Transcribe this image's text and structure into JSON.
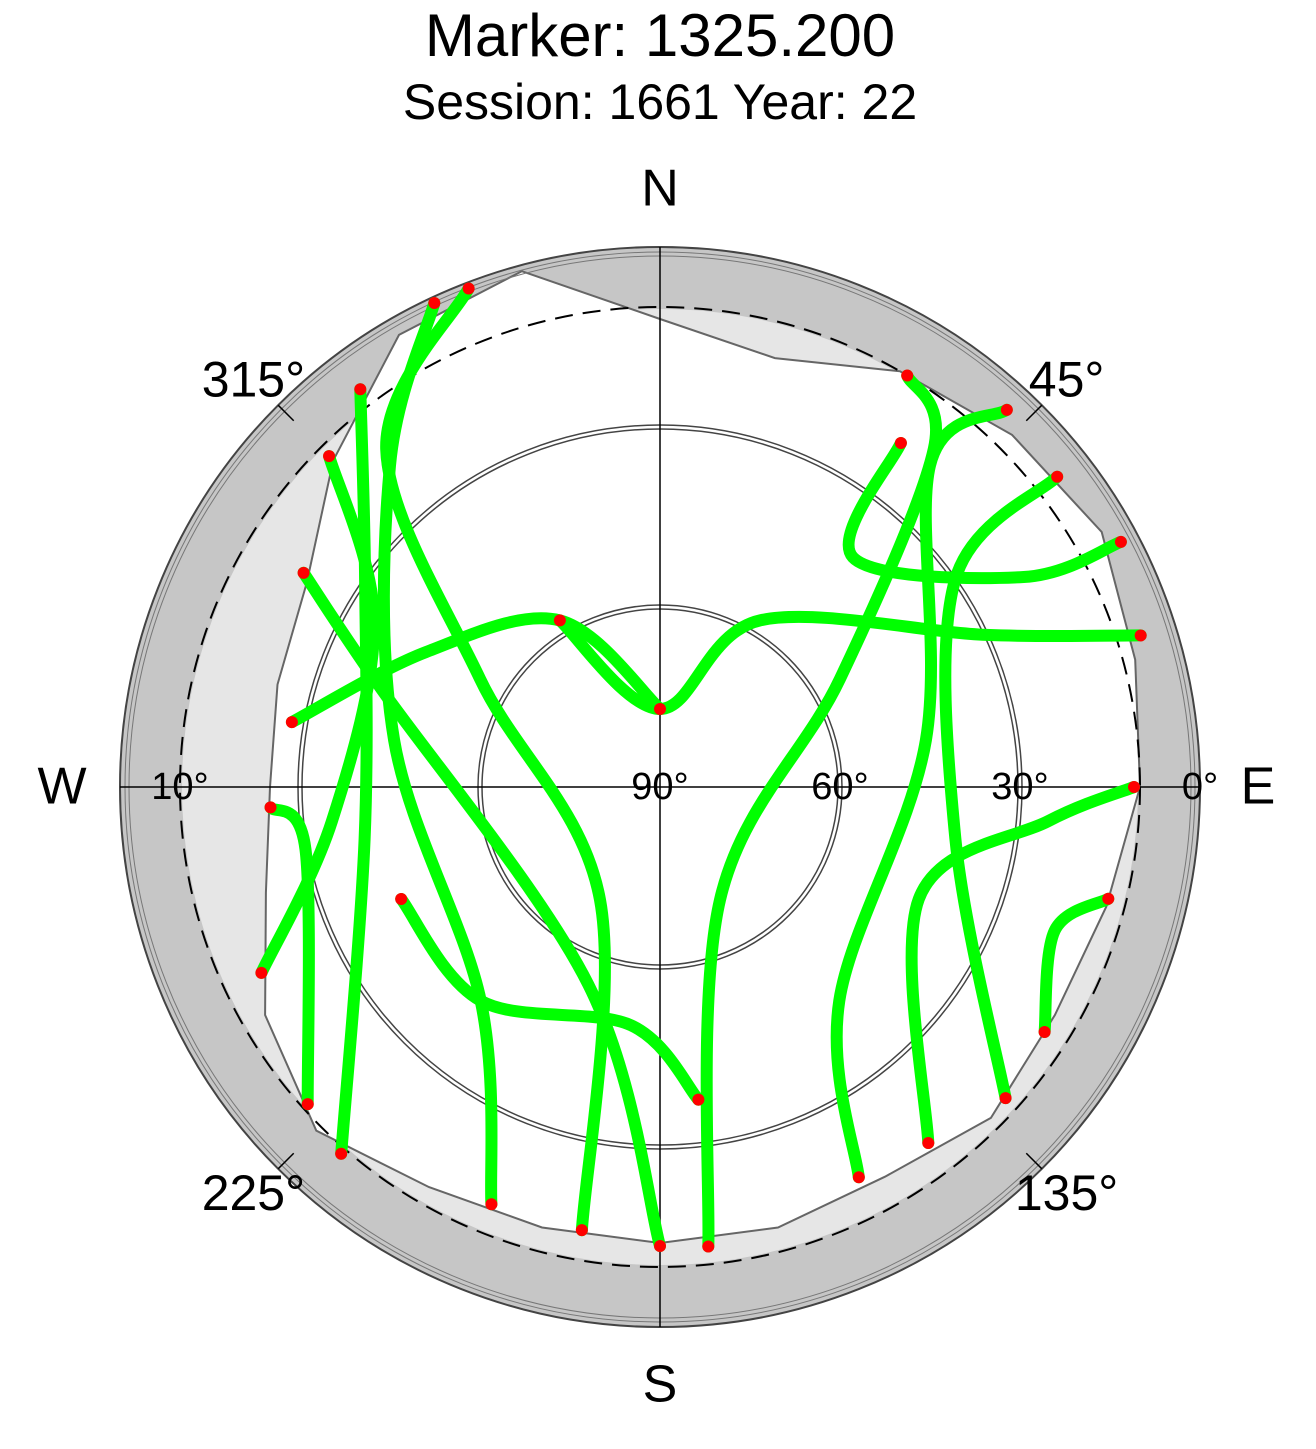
{
  "chart_data": {
    "type": "skyplot",
    "title": "Marker: 1325.200",
    "subtitle": "Session: 1661 Year: 22",
    "azticks": [
      {
        "value": 0,
        "label": "N"
      },
      {
        "value": 45,
        "label": "45°"
      },
      {
        "value": 90,
        "label": "E"
      },
      {
        "value": 135,
        "label": "135°"
      },
      {
        "value": 180,
        "label": "S"
      },
      {
        "value": 225,
        "label": "225°"
      },
      {
        "value": 270,
        "label": "W"
      },
      {
        "value": 315,
        "label": "315°"
      }
    ],
    "rlim": [
      0,
      90
    ],
    "rticks_east": [
      {
        "value": 90,
        "label": "90°"
      },
      {
        "value": 60,
        "label": "60°"
      },
      {
        "value": 30,
        "label": "30°"
      },
      {
        "value": 0,
        "label": "0°"
      }
    ],
    "rticks_west": [
      {
        "value": 10,
        "label": "10°"
      }
    ],
    "horizon_mask": {
      "azimuth": [
        0,
        15,
        30,
        45,
        60,
        75,
        90,
        105,
        120,
        135,
        150,
        165,
        180,
        195,
        210,
        225,
        240,
        255,
        270,
        285,
        300,
        315,
        330,
        345
      ],
      "elevation": [
        12,
        16,
        10,
        7,
        5,
        8,
        10,
        13,
        14,
        12,
        15,
        14,
        14,
        14,
        13,
        9,
        14,
        22,
        25,
        24,
        22,
        13,
        3,
        1
      ]
    },
    "track_color": "#00ff00",
    "endpoint_color": "#ff0000",
    "tracks": [
      {
        "azimuth": [
          339,
          321,
          301,
          208,
          190
        ],
        "elevation": [
          1,
          17.5,
          55,
          68.7,
          15
        ]
      },
      {
        "azimuth": [
          335,
          320,
          280,
          220,
          202
        ],
        "elevation": [
          1,
          20,
          45,
          43.5,
          15
        ]
      },
      {
        "azimuth": [
          323,
          305,
          260,
          221
        ],
        "elevation": [
          7,
          30,
          40,
          9
        ]
      },
      {
        "azimuth": [
          315,
          300,
          264,
          245
        ],
        "elevation": [
          12,
          35,
          35,
          16.7
        ]
      },
      {
        "azimuth": [
          301,
          290,
          200,
          180
        ],
        "elevation": [
          20.7,
          40,
          55,
          13.5
        ]
      },
      {
        "azimuth": [
          280,
          300,
          329,
          0
        ],
        "elevation": [
          27.7,
          45,
          57.6,
          77
        ]
      },
      {
        "azimuth": [
          267,
          260,
          228
        ],
        "elevation": [
          25,
          30,
          11
        ]
      },
      {
        "azimuth": [
          31,
          39,
          59,
          152,
          174
        ],
        "elevation": [
          10,
          17.5,
          55,
          68.7,
          13
        ]
      },
      {
        "azimuth": [
          42.6,
          40,
          80,
          140,
          153
        ],
        "elevation": [
          4.6,
          20,
          45,
          43.5,
          17
        ]
      },
      {
        "azimuth": [
          52,
          55,
          100,
          132
        ],
        "elevation": [
          6,
          30,
          40,
          12.5
        ]
      },
      {
        "azimuth": [
          72.5,
          65,
          31,
          0,
          329
        ],
        "elevation": [
          6,
          30,
          57.6,
          77,
          57.6
        ]
      },
      {
        "azimuth": [
          90,
          95,
          113.4,
          143
        ],
        "elevation": [
          11,
          25,
          43,
          15.7
        ]
      },
      {
        "azimuth": [
          104,
          110,
          122.5
        ],
        "elevation": [
          13,
          20,
          14
        ]
      },
      {
        "azimuth": [
          62,
          60,
          40,
          35
        ],
        "elevation": [
          3,
          20,
          40,
          20
        ]
      },
      {
        "azimuth": [
          173,
          187,
          220,
          246.6
        ],
        "elevation": [
          37.5,
          50,
          43.5,
          43
        ]
      }
    ]
  }
}
